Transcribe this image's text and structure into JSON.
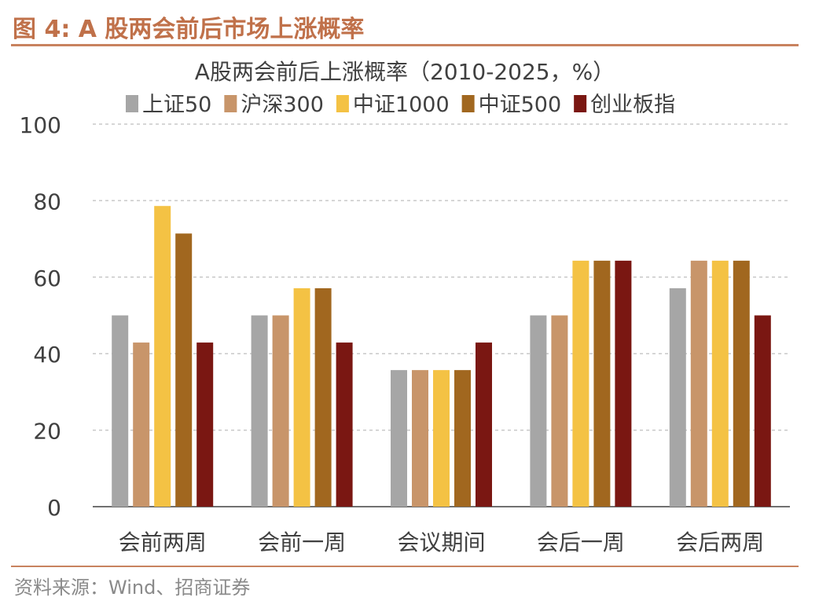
{
  "figure_title": "图 4:  A 股两会前后市场上涨概率",
  "source": "资料来源：Wind、招商证券",
  "chart_data": {
    "type": "bar",
    "title": "A股两会前后上涨概率（2010-2025，%）",
    "categories": [
      "会前两周",
      "会前一周",
      "会议期间",
      "会后一周",
      "会后两周"
    ],
    "series": [
      {
        "name": "上证50",
        "color": "#a6a6a6",
        "values": [
          50,
          50,
          35.7,
          50,
          57.1
        ]
      },
      {
        "name": "沪深300",
        "color": "#c8956a",
        "values": [
          42.9,
          50,
          35.7,
          50,
          64.3
        ]
      },
      {
        "name": "中证1000",
        "color": "#f4c244",
        "values": [
          78.6,
          57.1,
          35.7,
          64.3,
          64.3
        ]
      },
      {
        "name": "中证500",
        "color": "#a1671f",
        "values": [
          71.4,
          57.1,
          35.7,
          64.3,
          64.3
        ]
      },
      {
        "name": "创业板指",
        "color": "#7a1712",
        "values": [
          42.9,
          42.9,
          42.9,
          64.3,
          50
        ]
      }
    ],
    "ylim": [
      0,
      100
    ],
    "yticks": [
      0,
      20,
      40,
      60,
      80,
      100
    ],
    "grid": true,
    "legend_position": "top"
  }
}
